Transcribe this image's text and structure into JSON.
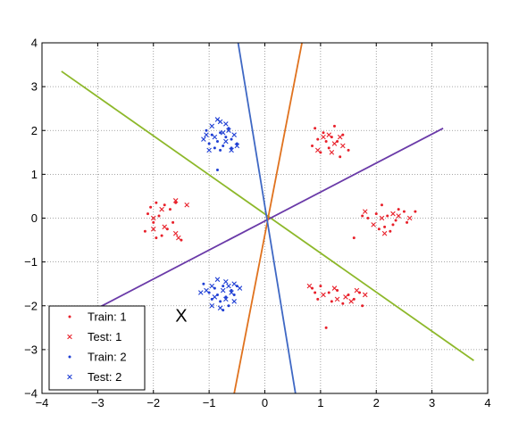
{
  "chart_data": {
    "type": "scatter",
    "title": "",
    "xlabel": "",
    "ylabel": "",
    "xlim": [
      -4,
      4
    ],
    "ylim": [
      -4,
      4
    ],
    "grid": true,
    "grid_style": "dotted",
    "xticks": [
      -4,
      -3,
      -2,
      -1,
      0,
      1,
      2,
      3,
      4
    ],
    "yticks": [
      -4,
      -3,
      -2,
      -1,
      0,
      1,
      2,
      3,
      4
    ],
    "xtick_labels": [
      "−4",
      "−3",
      "−2",
      "−1",
      "0",
      "1",
      "2",
      "3",
      "4"
    ],
    "ytick_labels": [
      "−4",
      "−3",
      "−2",
      "−1",
      "0",
      "1",
      "2",
      "3",
      "4"
    ],
    "legend_position": "bottom-left",
    "series": [
      {
        "name": "Train: 1",
        "marker": "dot",
        "color": "#e8202a",
        "points": [
          [
            -2.05,
            0.25
          ],
          [
            -1.95,
            0.35
          ],
          [
            -2.1,
            0.1
          ],
          [
            -1.8,
            0.3
          ],
          [
            -1.7,
            0.2
          ],
          [
            -2.0,
            -0.1
          ],
          [
            -1.9,
            0.05
          ],
          [
            -1.75,
            -0.25
          ],
          [
            -1.6,
            0.35
          ],
          [
            -2.15,
            -0.3
          ],
          [
            -1.85,
            -0.4
          ],
          [
            -1.5,
            -0.5
          ],
          [
            -1.95,
            -0.45
          ],
          [
            -1.65,
            -0.1
          ],
          [
            2.0,
            0.1
          ],
          [
            2.2,
            0.05
          ],
          [
            2.35,
            -0.05
          ],
          [
            2.5,
            0.15
          ],
          [
            2.15,
            -0.2
          ],
          [
            2.05,
            -0.25
          ],
          [
            2.4,
            0.2
          ],
          [
            2.7,
            0.15
          ],
          [
            1.85,
            0.0
          ],
          [
            2.25,
            -0.3
          ],
          [
            1.6,
            -0.45
          ],
          [
            2.55,
            -0.1
          ],
          [
            2.3,
            -0.15
          ],
          [
            1.75,
            0.05
          ],
          [
            2.1,
            0.3
          ],
          [
            0.95,
            1.8
          ],
          [
            1.05,
            1.95
          ],
          [
            1.2,
            1.85
          ],
          [
            1.3,
            1.75
          ],
          [
            1.15,
            1.6
          ],
          [
            1.4,
            1.9
          ],
          [
            0.9,
            2.05
          ],
          [
            1.25,
            2.1
          ],
          [
            1.5,
            1.55
          ],
          [
            1.0,
            1.5
          ],
          [
            1.35,
            1.4
          ],
          [
            1.1,
            1.75
          ],
          [
            0.85,
            1.65
          ],
          [
            0.85,
            -1.6
          ],
          [
            1.0,
            -1.55
          ],
          [
            1.15,
            -1.7
          ],
          [
            1.3,
            -1.65
          ],
          [
            1.5,
            -1.75
          ],
          [
            1.7,
            -1.7
          ],
          [
            1.2,
            -1.9
          ],
          [
            0.95,
            -1.85
          ],
          [
            1.4,
            -1.95
          ],
          [
            1.6,
            -1.85
          ],
          [
            1.75,
            -2.0
          ],
          [
            1.1,
            -2.5
          ],
          [
            0.9,
            -1.7
          ]
        ]
      },
      {
        "name": "Test: 1",
        "marker": "x",
        "color": "#e8202a",
        "points": [
          [
            -2.0,
            0.0
          ],
          [
            -1.6,
            0.4
          ],
          [
            -1.85,
            0.2
          ],
          [
            -2.0,
            -0.25
          ],
          [
            -1.6,
            -0.35
          ],
          [
            -1.4,
            0.3
          ],
          [
            -1.8,
            -0.2
          ],
          [
            -1.55,
            -0.45
          ],
          [
            2.1,
            0.0
          ],
          [
            2.4,
            0.05
          ],
          [
            1.95,
            -0.15
          ],
          [
            2.6,
            0.0
          ],
          [
            2.3,
            0.1
          ],
          [
            2.15,
            -0.35
          ],
          [
            1.8,
            0.15
          ],
          [
            1.05,
            1.85
          ],
          [
            1.25,
            1.7
          ],
          [
            1.4,
            1.65
          ],
          [
            1.15,
            1.9
          ],
          [
            1.35,
            1.85
          ],
          [
            0.95,
            1.55
          ],
          [
            1.2,
            1.5
          ],
          [
            0.8,
            -1.55
          ],
          [
            1.05,
            -1.75
          ],
          [
            1.25,
            -1.6
          ],
          [
            1.45,
            -1.8
          ],
          [
            1.65,
            -1.65
          ],
          [
            1.8,
            -1.75
          ],
          [
            1.3,
            -1.85
          ],
          [
            1.55,
            -1.9
          ]
        ]
      },
      {
        "name": "Train: 2",
        "marker": "dot",
        "color": "#1f3fd4",
        "points": [
          [
            -0.95,
            1.9
          ],
          [
            -0.8,
            1.95
          ],
          [
            -0.7,
            1.85
          ],
          [
            -0.85,
            1.75
          ],
          [
            -0.6,
            1.8
          ],
          [
            -1.0,
            1.7
          ],
          [
            -0.75,
            1.65
          ],
          [
            -0.9,
            1.6
          ],
          [
            -0.5,
            1.7
          ],
          [
            -0.65,
            2.05
          ],
          [
            -1.05,
            2.0
          ],
          [
            -0.8,
            1.55
          ],
          [
            -0.6,
            1.6
          ],
          [
            -0.85,
            1.1
          ],
          [
            -0.9,
            -1.6
          ],
          [
            -0.75,
            -1.55
          ],
          [
            -0.6,
            -1.65
          ],
          [
            -0.85,
            -1.75
          ],
          [
            -0.7,
            -1.8
          ],
          [
            -1.0,
            -1.7
          ],
          [
            -0.55,
            -1.75
          ],
          [
            -0.8,
            -1.9
          ],
          [
            -0.65,
            -2.0
          ],
          [
            -0.95,
            -1.85
          ],
          [
            -0.5,
            -1.55
          ],
          [
            -1.1,
            -1.5
          ],
          [
            -0.75,
            -2.1
          ]
        ]
      },
      {
        "name": "Test: 2",
        "marker": "x",
        "color": "#1f3fd4",
        "points": [
          [
            -0.95,
            2.1
          ],
          [
            -0.8,
            2.2
          ],
          [
            -0.65,
            2.0
          ],
          [
            -0.9,
            1.85
          ],
          [
            -0.7,
            1.75
          ],
          [
            -1.1,
            1.8
          ],
          [
            -0.55,
            1.9
          ],
          [
            -0.75,
            1.95
          ],
          [
            -1.0,
            1.55
          ],
          [
            -0.6,
            1.55
          ],
          [
            -0.85,
            2.25
          ],
          [
            -0.5,
            1.65
          ],
          [
            -0.7,
            2.15
          ],
          [
            -1.05,
            1.9
          ],
          [
            -0.85,
            -1.4
          ],
          [
            -0.7,
            -1.45
          ],
          [
            -0.55,
            -1.5
          ],
          [
            -0.95,
            -1.55
          ],
          [
            -0.75,
            -1.65
          ],
          [
            -0.6,
            -1.7
          ],
          [
            -1.05,
            -1.65
          ],
          [
            -0.45,
            -1.6
          ],
          [
            -0.9,
            -1.8
          ],
          [
            -0.7,
            -1.85
          ],
          [
            -0.55,
            -1.9
          ],
          [
            -0.8,
            -2.05
          ],
          [
            -1.15,
            -1.7
          ],
          [
            -0.95,
            -2.0
          ],
          [
            -0.65,
            -1.55
          ]
        ]
      }
    ],
    "lines": [
      {
        "color": "#8db82a",
        "from": [
          -3.65,
          3.35
        ],
        "to": [
          3.75,
          -3.25
        ]
      },
      {
        "color": "#6a3aa8",
        "from": [
          -3.3,
          -2.25
        ],
        "to": [
          3.2,
          2.05
        ]
      },
      {
        "color": "#e0721e",
        "from": [
          -0.55,
          -4.0
        ],
        "to": [
          0.75,
          4.55
        ]
      },
      {
        "color": "#3f68c4",
        "from": [
          -0.55,
          4.55
        ],
        "to": [
          0.55,
          -4.0
        ]
      }
    ],
    "annotations": [
      {
        "text": "X",
        "x": -1.5,
        "y": -2.25
      }
    ]
  }
}
